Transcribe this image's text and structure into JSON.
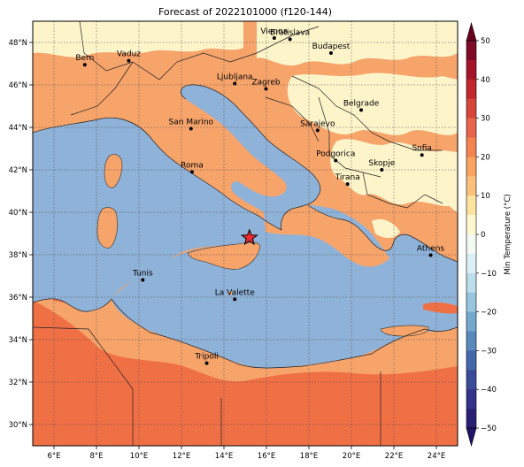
{
  "title": "Forecast of 2022101000 (f120-144)",
  "map": {
    "lon_range": [
      5,
      25
    ],
    "lat_range": [
      29,
      49
    ],
    "lon_ticks": [
      "6°E",
      "8°E",
      "10°E",
      "12°E",
      "14°E",
      "16°E",
      "18°E",
      "20°E",
      "22°E",
      "24°E"
    ],
    "lat_ticks": [
      "30°N",
      "32°N",
      "34°N",
      "36°N",
      "38°N",
      "40°N",
      "42°N",
      "44°N",
      "46°N",
      "48°N"
    ],
    "grid": true,
    "marker": {
      "name": "star-marker",
      "lon": 15.2,
      "lat": 38.8,
      "color": "#e8292e"
    },
    "cities": [
      {
        "name": "Bern",
        "lon": 7.45,
        "lat": 46.95
      },
      {
        "name": "Vaduz",
        "lon": 9.52,
        "lat": 47.14
      },
      {
        "name": "Vienna",
        "lon": 16.37,
        "lat": 48.21
      },
      {
        "name": "Bratislava",
        "lon": 17.11,
        "lat": 48.15
      },
      {
        "name": "Budapest",
        "lon": 19.04,
        "lat": 47.5
      },
      {
        "name": "Ljubljana",
        "lon": 14.51,
        "lat": 46.06
      },
      {
        "name": "Zagreb",
        "lon": 15.98,
        "lat": 45.81
      },
      {
        "name": "Belgrade",
        "lon": 20.46,
        "lat": 44.82
      },
      {
        "name": "San Marino",
        "lon": 12.45,
        "lat": 43.94
      },
      {
        "name": "Sarajevo",
        "lon": 18.41,
        "lat": 43.86
      },
      {
        "name": "Sofia",
        "lon": 23.32,
        "lat": 42.7
      },
      {
        "name": "Podgorica",
        "lon": 19.26,
        "lat": 42.44
      },
      {
        "name": "Skopje",
        "lon": 21.43,
        "lat": 42.0
      },
      {
        "name": "Roma",
        "lon": 12.5,
        "lat": 41.9
      },
      {
        "name": "Tirana",
        "lon": 19.82,
        "lat": 41.33
      },
      {
        "name": "Athens",
        "lon": 23.73,
        "lat": 37.98
      },
      {
        "name": "Tunis",
        "lon": 10.18,
        "lat": 36.81
      },
      {
        "name": "La Valette",
        "lon": 14.51,
        "lat": 35.9
      },
      {
        "name": "Tripoli",
        "lon": 13.19,
        "lat": 32.89
      }
    ]
  },
  "colorbar": {
    "label": "Min Temperature (°C)",
    "ticks": [
      "50",
      "40",
      "30",
      "20",
      "10",
      "0",
      "−10",
      "−20",
      "−30",
      "−40",
      "−50"
    ],
    "bins": [
      {
        "from": 45,
        "to": 50,
        "color": "#7f0a25"
      },
      {
        "from": 40,
        "to": 45,
        "color": "#a51429"
      },
      {
        "from": 35,
        "to": 40,
        "color": "#c1272d"
      },
      {
        "from": 30,
        "to": 35,
        "color": "#d6453a"
      },
      {
        "from": 25,
        "to": 30,
        "color": "#e8644a"
      },
      {
        "from": 20,
        "to": 25,
        "color": "#f4844f"
      },
      {
        "from": 15,
        "to": 20,
        "color": "#f8a35f"
      },
      {
        "from": 10,
        "to": 15,
        "color": "#fac07c"
      },
      {
        "from": 5,
        "to": 10,
        "color": "#fde3a0"
      },
      {
        "from": 0,
        "to": 5,
        "color": "#fef7cf"
      },
      {
        "from": -5,
        "to": 0,
        "color": "#f3faf5"
      },
      {
        "from": -10,
        "to": -5,
        "color": "#dbf0f5"
      },
      {
        "from": -15,
        "to": -10,
        "color": "#bcdeeb"
      },
      {
        "from": -20,
        "to": -15,
        "color": "#97c6de"
      },
      {
        "from": -25,
        "to": -20,
        "color": "#74a8cf"
      },
      {
        "from": -30,
        "to": -25,
        "color": "#5889bd"
      },
      {
        "from": -35,
        "to": -30,
        "color": "#4368a9"
      },
      {
        "from": -40,
        "to": -35,
        "color": "#3a4b99"
      },
      {
        "from": -45,
        "to": -40,
        "color": "#34328a"
      },
      {
        "from": -50,
        "to": -45,
        "color": "#2a1f75"
      }
    ],
    "extend_top_color": "#6a0020",
    "extend_bottom_color": "#22136a"
  },
  "colors": {
    "sea": "#8fb2d8",
    "warm_14": "#f7a46b",
    "warm_22": "#f07046",
    "cool_8": "#fdf4c9"
  }
}
